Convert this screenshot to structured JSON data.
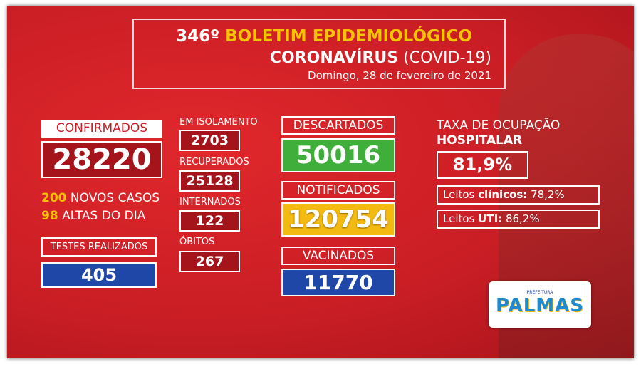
{
  "header": {
    "number": "346º",
    "title": "BOLETIM EPIDEMIOLÓGICO",
    "subtitle_bold": "CORONAVÍRUS",
    "subtitle_rest": "(COVID-19)",
    "date": "Domingo, 28 de fevereiro de 2021"
  },
  "confirmados": {
    "label": "CONFIRMADOS",
    "value": 28220
  },
  "novos_casos": {
    "value": 200,
    "label": "NOVOS CASOS"
  },
  "altas": {
    "value": 98,
    "label": "ALTAS DO DIA"
  },
  "testes": {
    "label": "TESTES REALIZADOS",
    "value": 405
  },
  "isolamento": {
    "label": "EM ISOLAMENTO",
    "value": 2703
  },
  "recuperados": {
    "label": "RECUPERADOS",
    "value": 25128
  },
  "internados": {
    "label": "INTERNADOS",
    "value": 122
  },
  "obitos": {
    "label": "ÓBITOS",
    "value": 267
  },
  "descartados": {
    "label": "DESCARTADOS",
    "value": 50016
  },
  "notificados": {
    "label": "NOTIFICADOS",
    "value": 120754
  },
  "vacinados": {
    "label": "VACINADOS",
    "value": 11770
  },
  "ocupacao": {
    "title_line1": "TAXA DE OCUPAÇÃO",
    "title_line2": "HOSPITALAR",
    "value": "81,9%",
    "clinicos": {
      "prefix": "Leitos",
      "bold": "clínicos:",
      "value": "78,2%"
    },
    "uti": {
      "prefix": "Leitos",
      "bold": "UTI:",
      "value": "86,2%"
    }
  },
  "logo": {
    "small": "PREFEITURA",
    "name": "PALMAS"
  }
}
